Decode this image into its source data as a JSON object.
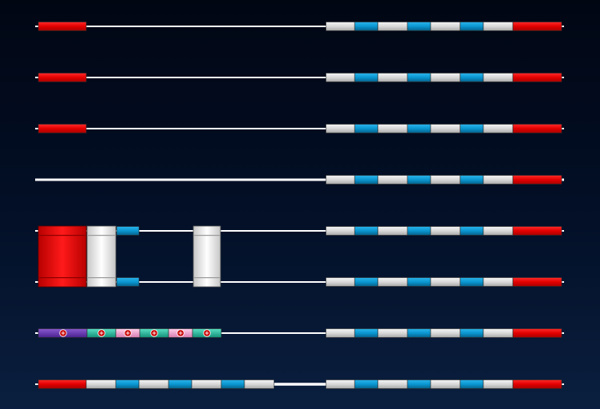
{
  "colors": {
    "line": "#ffffff",
    "red": "#e20000",
    "gray": "#d8d8d8",
    "blue": "#0a96d0",
    "purple": "#6a38b0",
    "teal": "#2ac4a6",
    "pink": "#f2a8d2",
    "site_marker": "#c80000",
    "background": "#021029"
  },
  "rows": [
    {
      "name": "row-1",
      "segments": [
        "red",
        "line",
        "gray",
        "blue",
        "gray",
        "blue",
        "gray",
        "blue",
        "gray",
        "red"
      ]
    },
    {
      "name": "row-2",
      "segments": [
        "red",
        "line",
        "gray",
        "blue",
        "gray",
        "blue",
        "gray",
        "blue",
        "gray",
        "red"
      ]
    },
    {
      "name": "row-3",
      "segments": [
        "red",
        "line",
        "gray",
        "blue",
        "gray",
        "blue",
        "gray",
        "blue",
        "gray",
        "red"
      ]
    },
    {
      "name": "row-4",
      "segments": [
        "line",
        "gray",
        "blue",
        "gray",
        "blue",
        "gray",
        "blue",
        "gray",
        "red"
      ]
    },
    {
      "name": "row-5-upper-strand",
      "segments": [
        "red-block",
        "gray-block",
        "blue",
        "line",
        "gray-block",
        "line",
        "gray",
        "blue",
        "gray",
        "blue",
        "gray",
        "blue",
        "gray",
        "red"
      ]
    },
    {
      "name": "row-6-lower-strand",
      "segments": [
        "red-block",
        "gray-block",
        "blue",
        "line",
        "gray-block",
        "line",
        "gray",
        "blue",
        "gray",
        "blue",
        "gray",
        "blue",
        "gray",
        "red"
      ]
    },
    {
      "name": "row-7",
      "segments": [
        "purple",
        "teal",
        "pink",
        "teal",
        "pink",
        "teal",
        "line",
        "gray",
        "blue",
        "gray",
        "blue",
        "gray",
        "blue",
        "gray",
        "red"
      ],
      "site_markers": 6
    },
    {
      "name": "row-8",
      "segments": [
        "red",
        "gray",
        "blue",
        "gray",
        "blue",
        "gray",
        "blue",
        "gray",
        "line",
        "gray",
        "blue",
        "gray",
        "blue",
        "gray",
        "blue",
        "gray",
        "red"
      ]
    }
  ]
}
